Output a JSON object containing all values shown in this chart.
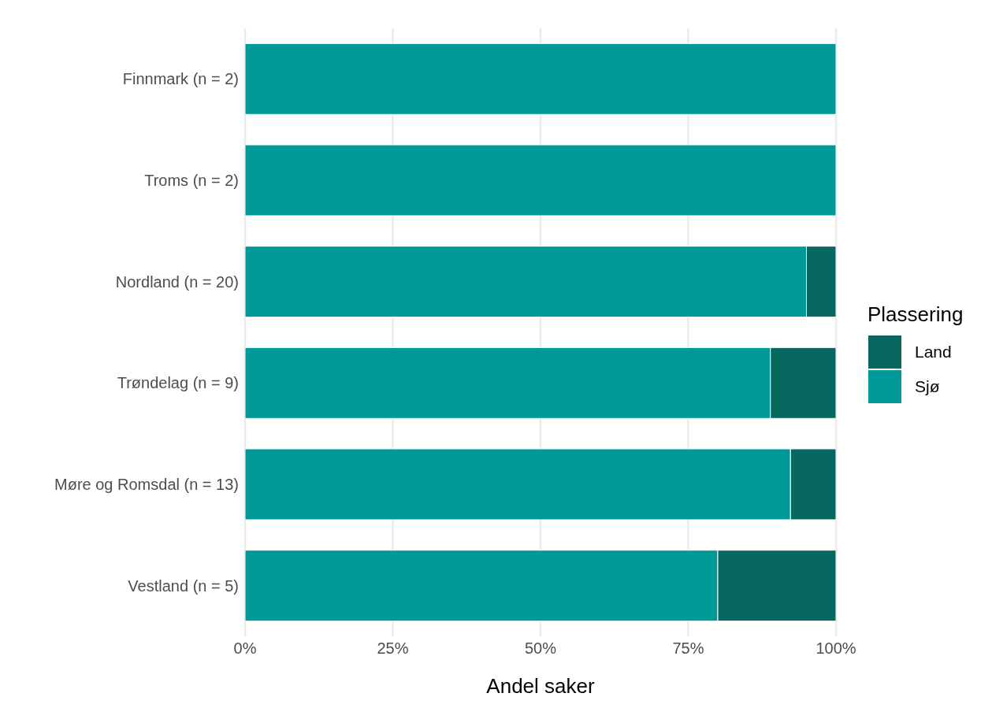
{
  "chart_data": {
    "type": "bar",
    "orientation": "horizontal",
    "stacked": true,
    "categories": [
      "Finnmark (n = 2)",
      "Troms (n = 2)",
      "Nordland (n = 20)",
      "Trøndelag (n = 9)",
      "Møre og Romsdal (n = 13)",
      "Vestland (n = 5)"
    ],
    "series": [
      {
        "name": "Sjø",
        "color": "#009999",
        "values": [
          100,
          100,
          95,
          88.9,
          92.3,
          80
        ]
      },
      {
        "name": "Land",
        "color": "#08675f",
        "values": [
          0,
          0,
          5,
          11.1,
          7.7,
          20
        ]
      }
    ],
    "xlim": [
      0,
      100
    ],
    "xticks": [
      {
        "value": 0,
        "label": "0%"
      },
      {
        "value": 25,
        "label": "25%"
      },
      {
        "value": 50,
        "label": "50%"
      },
      {
        "value": 75,
        "label": "75%"
      },
      {
        "value": 100,
        "label": "100%"
      }
    ],
    "xlabel": "Andel saker",
    "legend_title": "Plassering",
    "legend": "right",
    "grid": "x"
  }
}
